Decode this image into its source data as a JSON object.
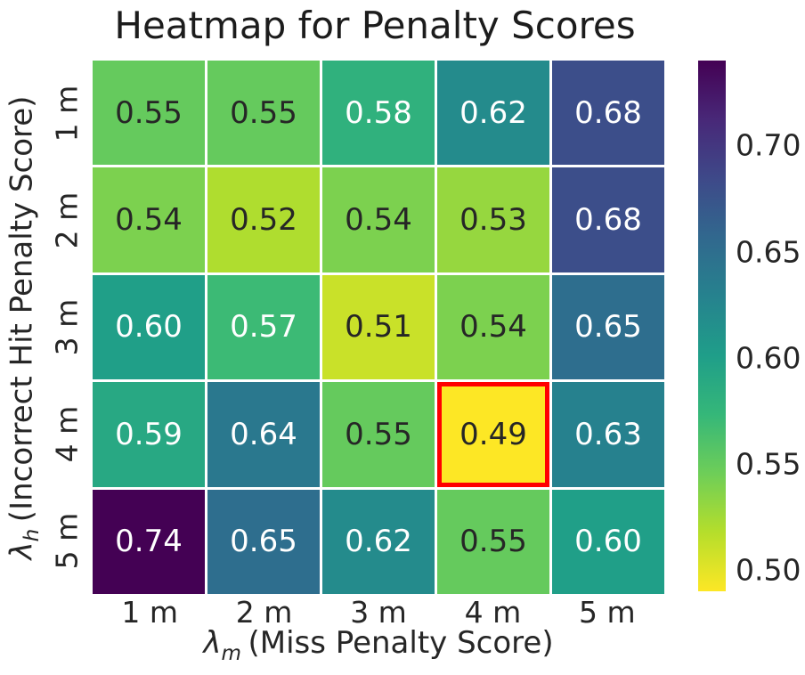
{
  "chart_data": {
    "type": "heatmap",
    "title": "Heatmap for Penalty Scores",
    "x_tick_labels": [
      "1 m",
      "2 m",
      "3 m",
      "4 m",
      "5 m"
    ],
    "y_tick_labels": [
      "1 m",
      "2 m",
      "3 m",
      "4 m",
      "5 m"
    ],
    "xlabel": {
      "symbol": "λ",
      "subscript": "m",
      "text": "(Miss Penalty Score)"
    },
    "ylabel": {
      "symbol": "λ",
      "subscript": "h",
      "text": "(Incorrect Hit Penalty Score)"
    },
    "values": [
      [
        0.55,
        0.55,
        0.58,
        0.62,
        0.68
      ],
      [
        0.54,
        0.52,
        0.54,
        0.53,
        0.68
      ],
      [
        0.6,
        0.57,
        0.51,
        0.54,
        0.65
      ],
      [
        0.59,
        0.64,
        0.55,
        0.49,
        0.63
      ],
      [
        0.74,
        0.65,
        0.62,
        0.55,
        0.6
      ]
    ],
    "value_decimals": 2,
    "colormap": "viridis_r",
    "vmin": 0.49,
    "vmax": 0.74,
    "grid_line_color": "#ffffff",
    "annotation_colors": {
      "dark": "#262626",
      "light": "#ffffff"
    },
    "highlight_cell": {
      "row_label": "4 m",
      "col_label": "4 m",
      "row_index": 3,
      "col_index": 3,
      "value": 0.49,
      "border_color": "#ff0000"
    },
    "colorbar": {
      "position": "right",
      "tick_values": [
        0.7,
        0.65,
        0.6,
        0.55,
        0.5
      ],
      "tick_labels": [
        "0.70",
        "0.65",
        "0.60",
        "0.55",
        "0.50"
      ],
      "top_color": "#440154",
      "bottom_color": "#fde725"
    }
  }
}
